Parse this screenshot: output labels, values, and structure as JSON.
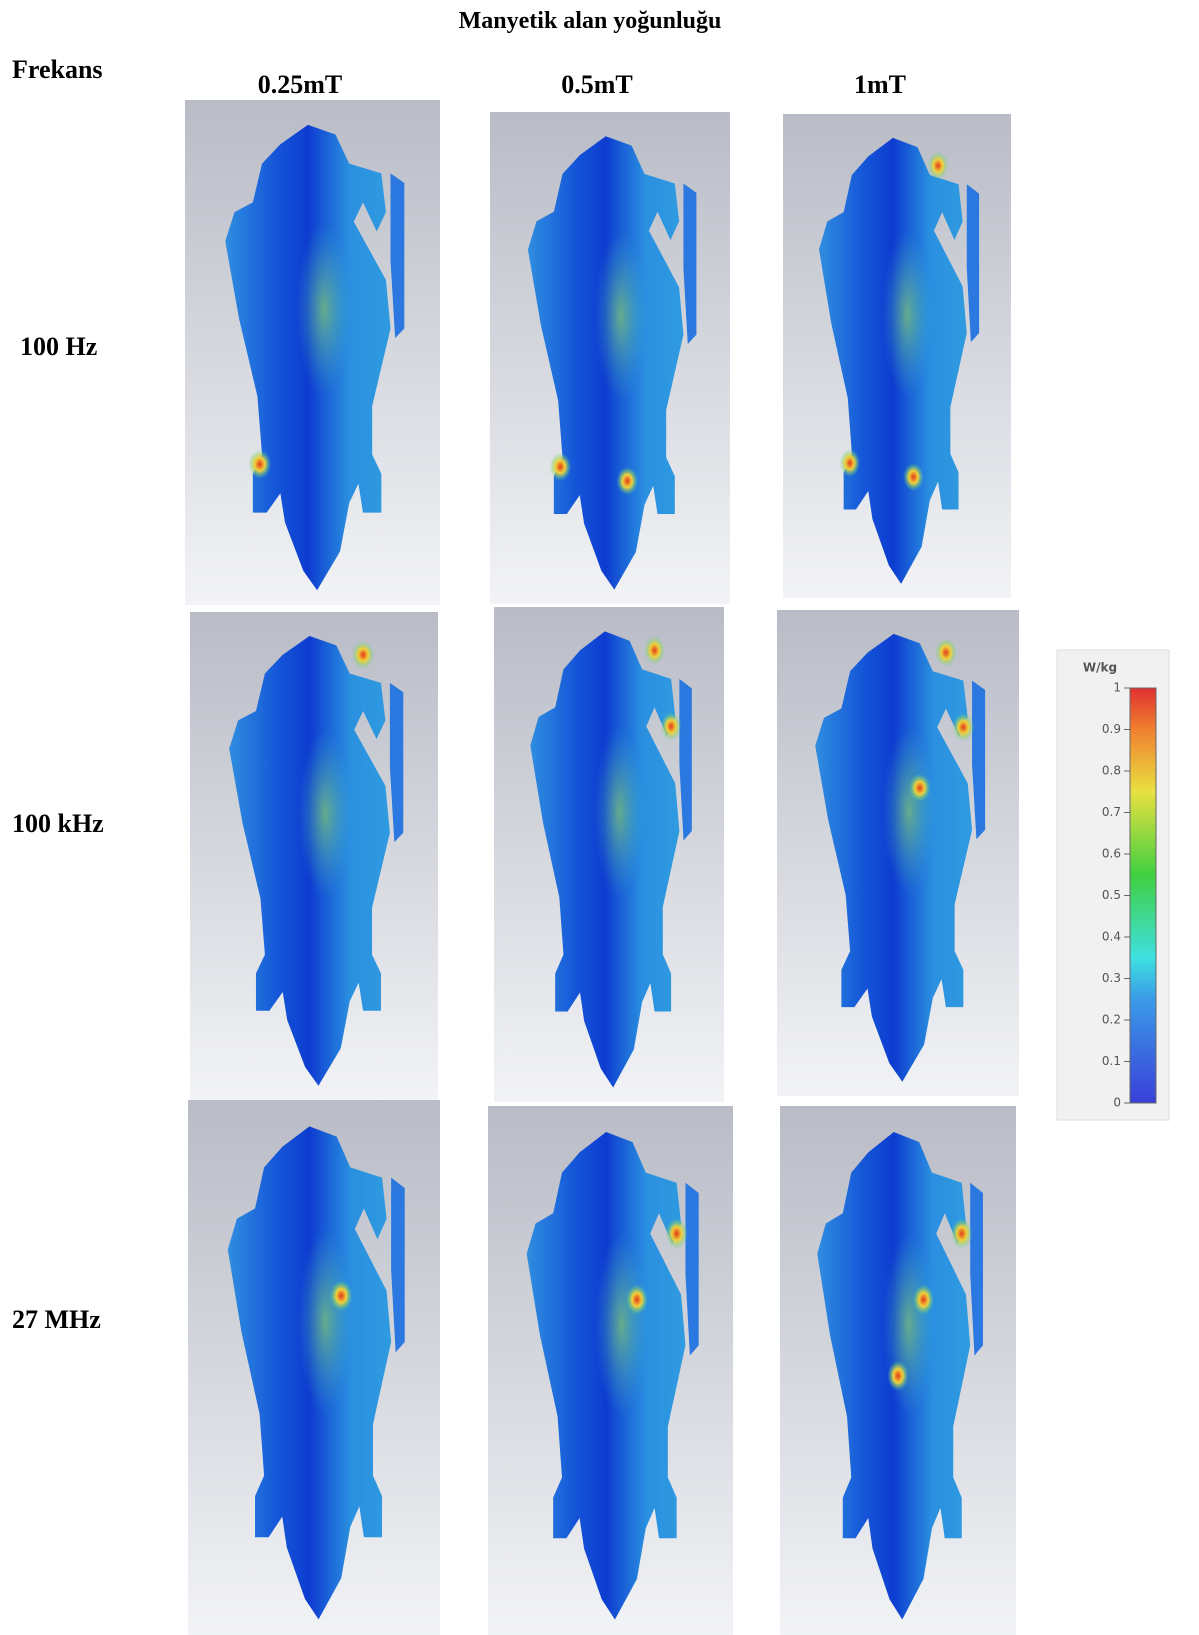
{
  "title": "Manyetik alan yoğunluğu",
  "row_header": "Frekans",
  "columns": [
    "0.25mT",
    "0.5mT",
    "1mT"
  ],
  "rows": [
    "100 Hz",
    "100 kHz",
    "27 MHz"
  ],
  "colorbar": {
    "unit": "W/kg",
    "ticks": [
      0,
      0.1,
      0.2,
      0.3,
      0.4,
      0.5,
      0.6,
      0.7,
      0.8,
      0.9,
      1
    ],
    "lim": [
      0,
      1
    ]
  }
}
